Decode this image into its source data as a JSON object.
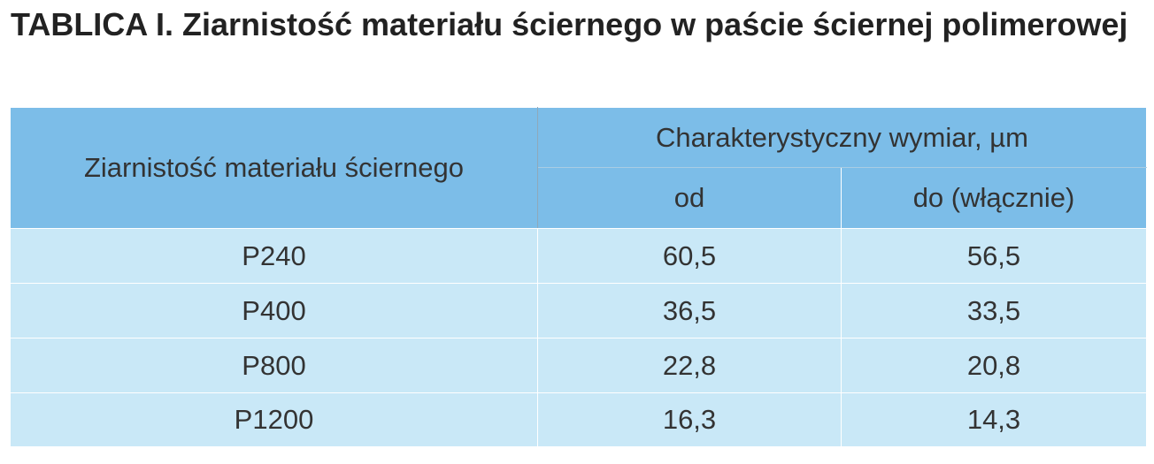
{
  "caption": "TABLICA I. Ziarnistość materiału ściernego w paście ściernej polimerowej",
  "table": {
    "header": {
      "grain_label": "Ziarnistość materiału ściernego",
      "dimension_label": "Charakterystyczny wymiar, µm",
      "from_label": "od",
      "to_label": "do (włącznie)"
    },
    "rows": [
      {
        "grain": "P240",
        "from": "60,5",
        "to": "56,5"
      },
      {
        "grain": "P400",
        "from": "36,5",
        "to": "33,5"
      },
      {
        "grain": "P800",
        "from": "22,8",
        "to": "20,8"
      },
      {
        "grain": "P1200",
        "from": "16,3",
        "to": "14,3"
      }
    ]
  },
  "colors": {
    "header_bg": "#7cbde8",
    "row_bg": "#c9e8f7",
    "border": "#4a6f8a"
  }
}
